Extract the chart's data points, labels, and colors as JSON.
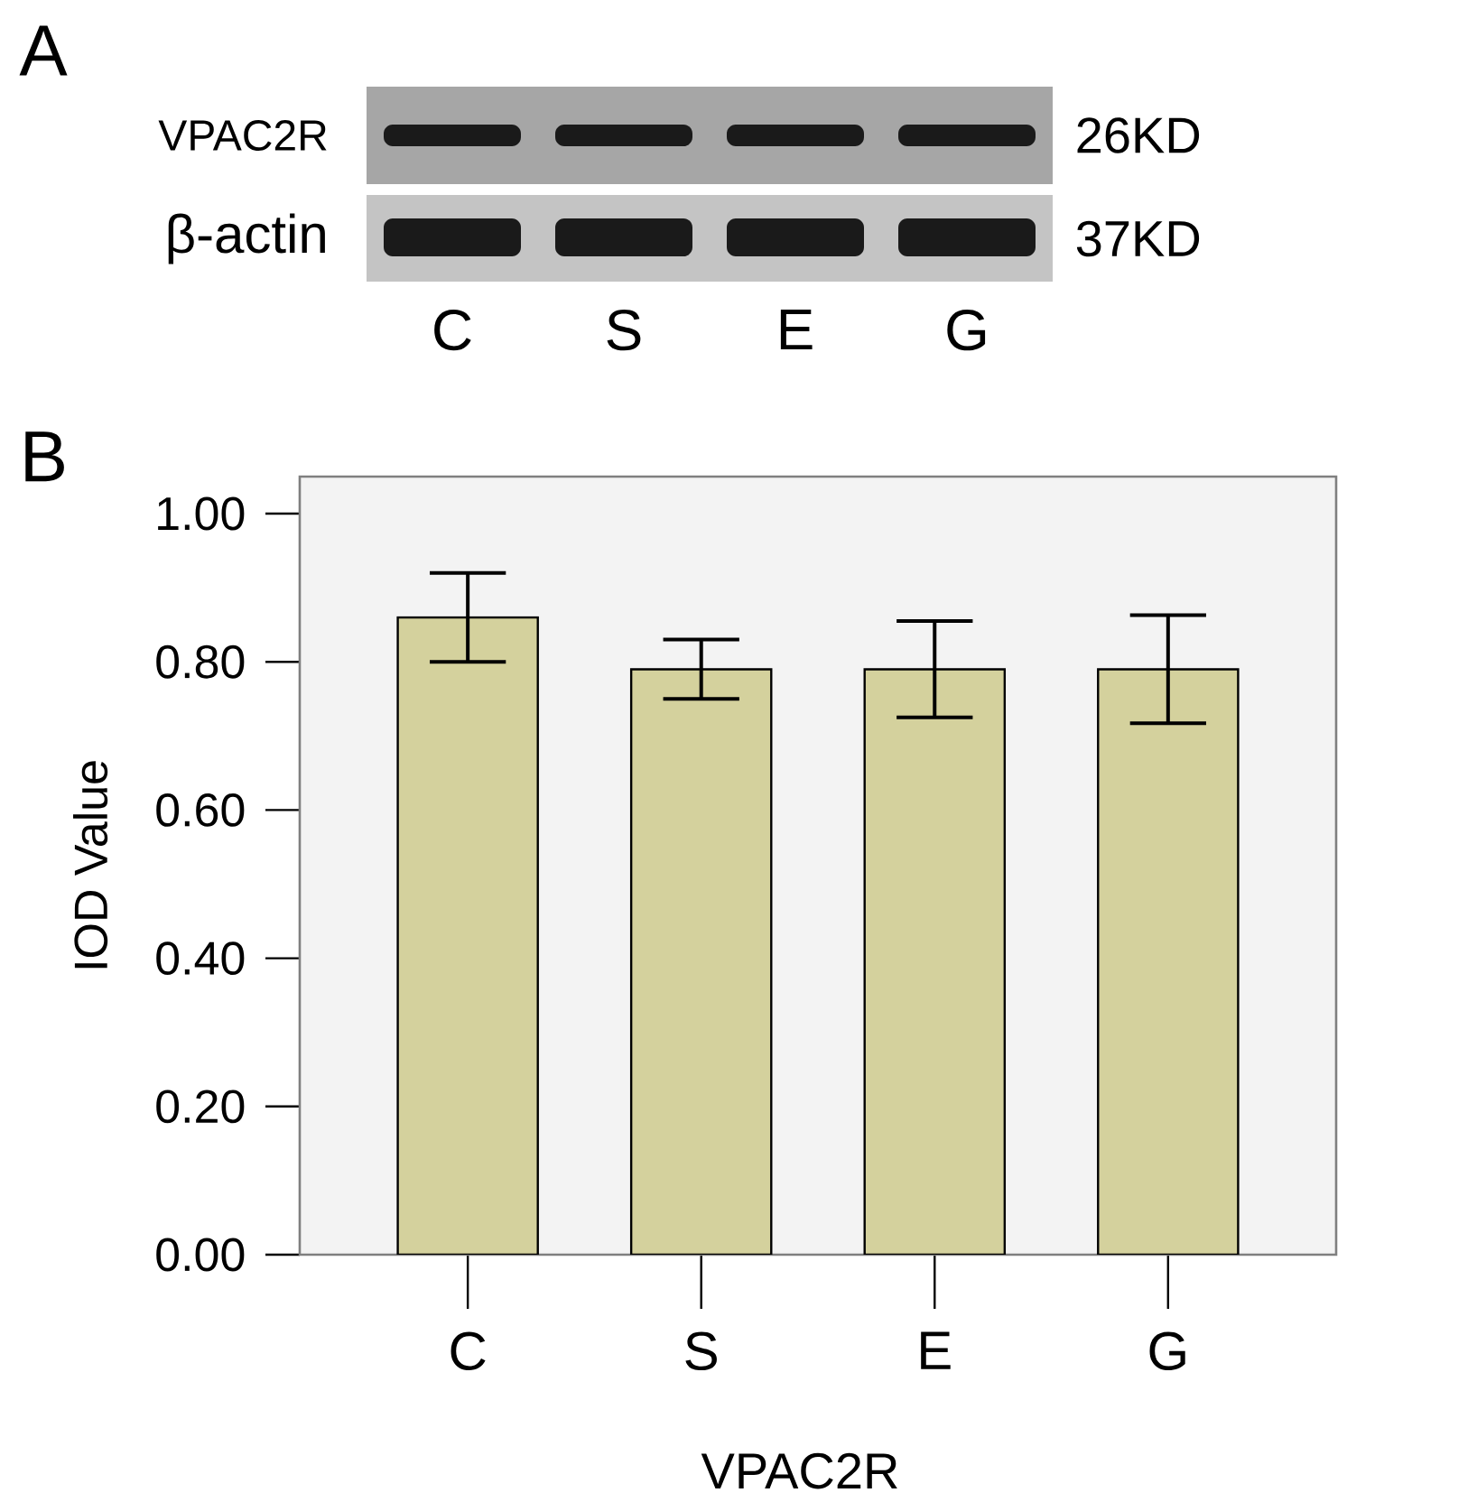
{
  "chart_data": [
    {
      "type": "other",
      "title": "A",
      "categories": [
        "C",
        "S",
        "E",
        "G"
      ],
      "annotations": [
        "VPAC2R",
        "26KD",
        "β-actin",
        "37KD"
      ]
    },
    {
      "type": "bar",
      "title": "B",
      "categories": [
        "C",
        "S",
        "E",
        "G"
      ],
      "values": [
        0.86,
        0.79,
        0.79,
        0.79
      ],
      "errors": [
        0.06,
        0.04,
        0.065,
        0.073
      ],
      "color": "#d4d19d",
      "ylim": [
        0,
        1.05
      ],
      "yticks": [
        {
          "value": 0,
          "label": "0.00"
        },
        {
          "value": 0.2,
          "label": "0.20"
        },
        {
          "value": 0.4,
          "label": "0.40"
        },
        {
          "value": 0.6,
          "label": "0.60"
        },
        {
          "value": 0.8,
          "label": "0.80"
        },
        {
          "value": 1.0,
          "label": "1.00"
        }
      ],
      "xlabel": "VPAC2R",
      "ylabel": "IOD Value"
    }
  ]
}
